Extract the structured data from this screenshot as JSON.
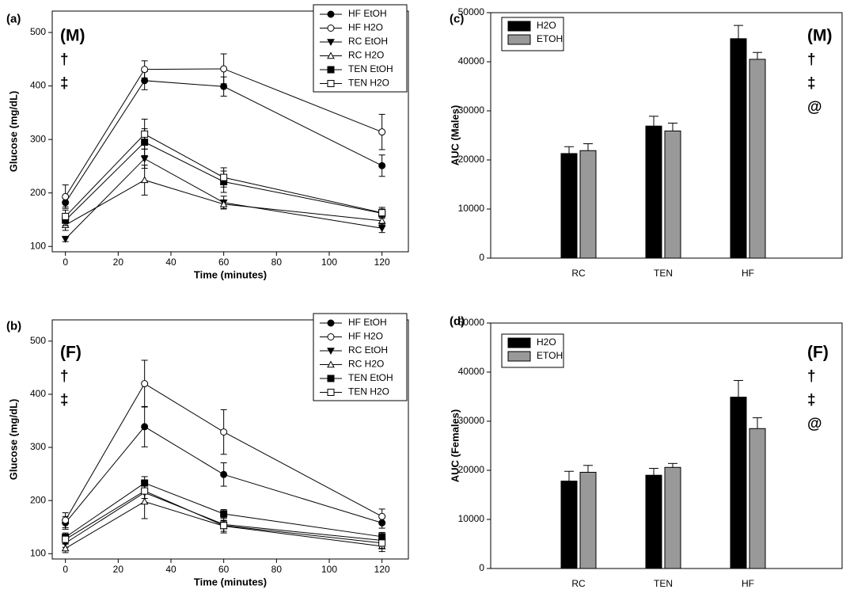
{
  "chart_data": [
    {
      "id": "a",
      "panel_label": "(a)",
      "type": "line",
      "xlabel": "Time (minutes)",
      "ylabel": "Glucose (mg/dL)",
      "xlim": [
        -5,
        130
      ],
      "ylim": [
        90,
        540
      ],
      "xticks": [
        0,
        20,
        40,
        60,
        80,
        100,
        120
      ],
      "yticks": [
        100,
        200,
        300,
        400,
        500
      ],
      "annotations": [
        "(M)",
        "†",
        "‡"
      ],
      "legend_position": "top-right",
      "x": [
        0,
        30,
        60,
        120
      ],
      "series": [
        {
          "name": "HF EtOH",
          "marker": "circle-filled",
          "values": [
            182,
            410,
            399,
            251
          ],
          "errors": [
            8,
            17,
            18,
            20
          ]
        },
        {
          "name": "HF H2O",
          "marker": "circle-open",
          "values": [
            193,
            431,
            432,
            314
          ],
          "errors": [
            22,
            16,
            28,
            33
          ]
        },
        {
          "name": "RC EtOH",
          "marker": "triangle-down-filled",
          "values": [
            114,
            264,
            182,
            134
          ],
          "errors": [
            5,
            18,
            12,
            8
          ]
        },
        {
          "name": "RC H2O",
          "marker": "triangle-up-open",
          "values": [
            140,
            224,
            179,
            148
          ],
          "errors": [
            10,
            28,
            8,
            8
          ]
        },
        {
          "name": "TEN EtOH",
          "marker": "square-filled",
          "values": [
            149,
            295,
            221,
            162
          ],
          "errors": [
            10,
            25,
            20,
            8
          ]
        },
        {
          "name": "TEN H2O",
          "marker": "square-open",
          "values": [
            156,
            310,
            229,
            163
          ],
          "errors": [
            12,
            28,
            18,
            10
          ]
        }
      ]
    },
    {
      "id": "b",
      "panel_label": "(b)",
      "type": "line",
      "xlabel": "Time (minutes)",
      "ylabel": "Glucose (mg/dL)",
      "xlim": [
        -5,
        130
      ],
      "ylim": [
        90,
        540
      ],
      "xticks": [
        0,
        20,
        40,
        60,
        80,
        100,
        120
      ],
      "yticks": [
        100,
        200,
        300,
        400,
        500
      ],
      "annotations": [
        "(F)",
        "†",
        "‡"
      ],
      "legend_position": "top-right",
      "x": [
        0,
        30,
        60,
        120
      ],
      "series": [
        {
          "name": "HF EtOH",
          "marker": "circle-filled",
          "values": [
            158,
            339,
            249,
            158
          ],
          "errors": [
            12,
            38,
            22,
            10
          ]
        },
        {
          "name": "HF H2O",
          "marker": "circle-open",
          "values": [
            163,
            420,
            329,
            170
          ],
          "errors": [
            14,
            44,
            42,
            14
          ]
        },
        {
          "name": "RC EtOH",
          "marker": "triangle-down-filled",
          "values": [
            120,
            215,
            155,
            125
          ],
          "errors": [
            8,
            20,
            8,
            8
          ]
        },
        {
          "name": "RC H2O",
          "marker": "triangle-up-open",
          "values": [
            110,
            198,
            152,
            114
          ],
          "errors": [
            8,
            32,
            10,
            10
          ]
        },
        {
          "name": "TEN EtOH",
          "marker": "square-filled",
          "values": [
            131,
            233,
            175,
            132
          ],
          "errors": [
            8,
            12,
            8,
            8
          ]
        },
        {
          "name": "TEN H2O",
          "marker": "square-open",
          "values": [
            127,
            218,
            153,
            120
          ],
          "errors": [
            8,
            14,
            14,
            10
          ]
        }
      ]
    },
    {
      "id": "c",
      "panel_label": "(c)",
      "type": "bar",
      "xlabel": "",
      "ylabel": "AUC (Males)",
      "ylim": [
        0,
        50000
      ],
      "yticks": [
        0,
        10000,
        20000,
        30000,
        40000,
        50000
      ],
      "categories": [
        "RC",
        "TEN",
        "HF"
      ],
      "annotations": [
        "(M)",
        "†",
        "‡",
        "@"
      ],
      "legend_position": "top-left",
      "series": [
        {
          "name": "H2O",
          "color": "#000000",
          "values": [
            21300,
            26900,
            44700
          ],
          "errors": [
            1400,
            2000,
            2700
          ]
        },
        {
          "name": "ETOH",
          "color": "#999999",
          "values": [
            21900,
            25900,
            40500
          ],
          "errors": [
            1400,
            1600,
            1400
          ]
        }
      ]
    },
    {
      "id": "d",
      "panel_label": "(d)",
      "type": "bar",
      "xlabel": "",
      "ylabel": "AUC (Females)",
      "ylim": [
        0,
        50000
      ],
      "yticks": [
        0,
        10000,
        20000,
        30000,
        40000,
        50000
      ],
      "categories": [
        "RC",
        "TEN",
        "HF"
      ],
      "annotations": [
        "(F)",
        "†",
        "‡",
        "@"
      ],
      "legend_position": "top-left",
      "series": [
        {
          "name": "H2O",
          "color": "#000000",
          "values": [
            17800,
            19000,
            34900
          ],
          "errors": [
            2000,
            1400,
            3400
          ]
        },
        {
          "name": "ETOH",
          "color": "#999999",
          "values": [
            19600,
            20600,
            28500
          ],
          "errors": [
            1400,
            800,
            2200
          ]
        }
      ]
    }
  ]
}
